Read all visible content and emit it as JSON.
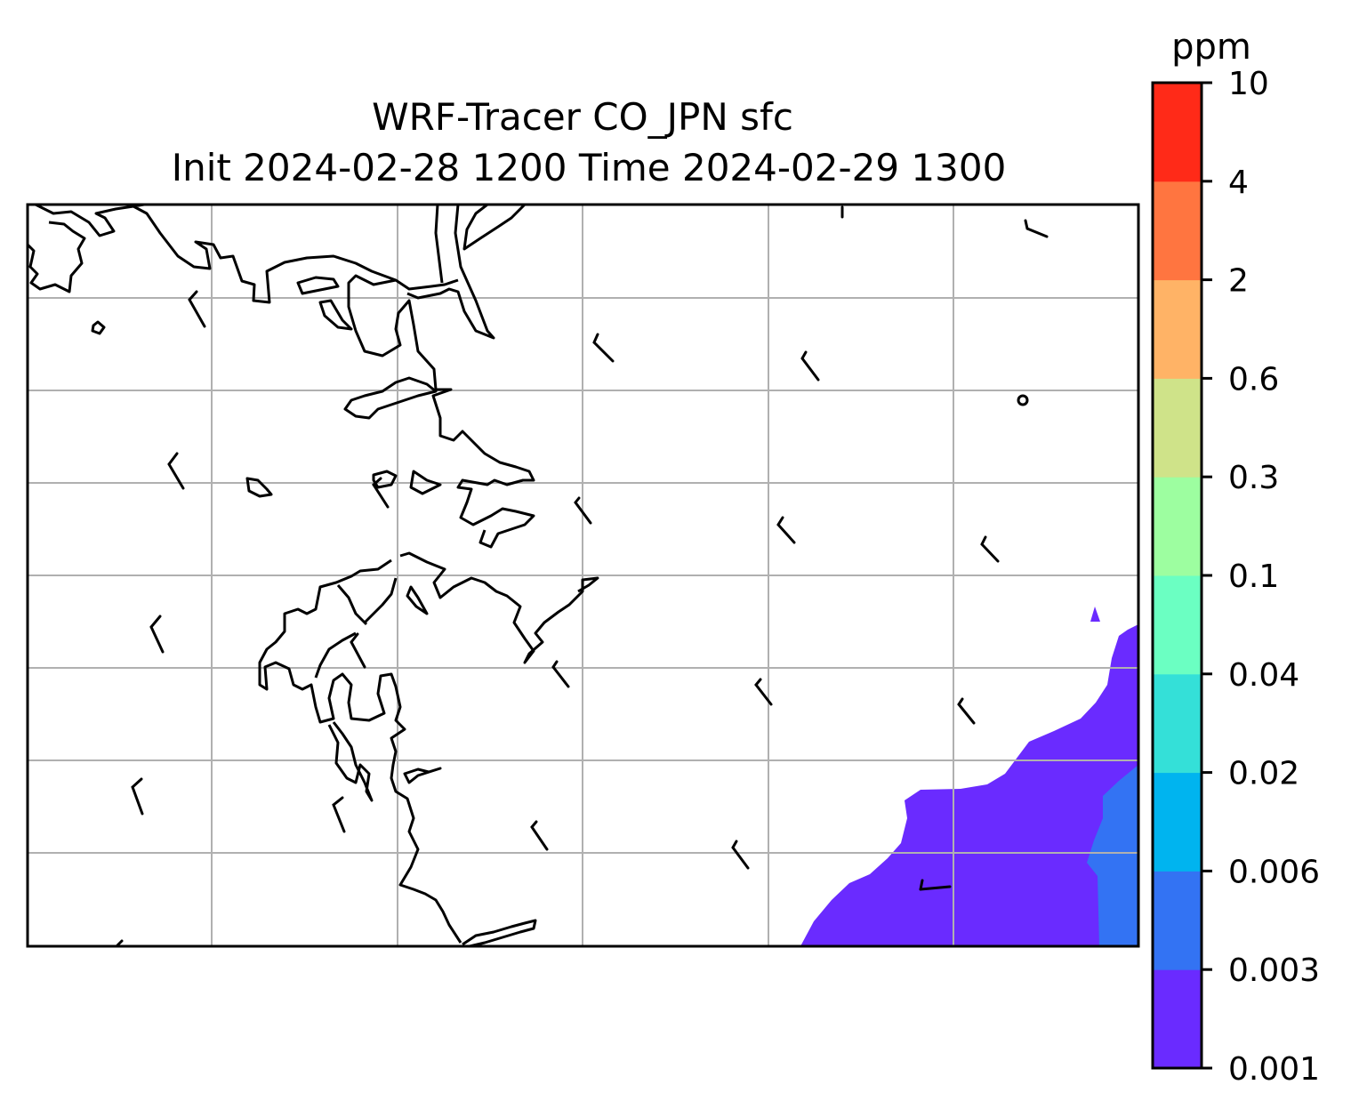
{
  "title": {
    "line1": "WRF-Tracer CO_JPN sfc",
    "line2": "Init 2024-02-28 1200 Time 2024-02-29 1300"
  },
  "colorbar": {
    "unit": "ppm",
    "levels": [
      "0.001",
      "0.003",
      "0.006",
      "0.02",
      "0.04",
      "0.1",
      "0.3",
      "0.6",
      "2",
      "4",
      "10"
    ],
    "colors": [
      "#6a2bff",
      "#3373f3",
      "#00b4ef",
      "#34e0d8",
      "#6bffc2",
      "#9dfea0",
      "#cfe389",
      "#ffb366",
      "#ff7540",
      "#ff2a18"
    ]
  },
  "map": {
    "gridlines": true,
    "coastline_color": "#000000",
    "grid_color": "#b0b0b0",
    "tracer_field": [
      {
        "level": "0.001-0.003",
        "color": "#6a2bff"
      },
      {
        "level": "0.003-0.006",
        "color": "#3373f3"
      }
    ],
    "wind_barbs": 26
  }
}
